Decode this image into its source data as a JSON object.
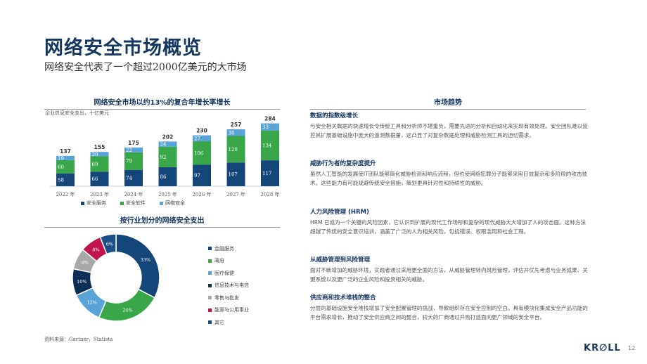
{
  "title": "网络安全市场概览",
  "subtitle": "网络安全代表了一个超过2000亿美元的大市场",
  "bar_section_title": "网络安全市场以约13%的复合年增长率增长",
  "bar_unit": "企业信息安全支出，十亿美元",
  "pie_section_title": "按行业划分的网络安全支出",
  "trend_section_title": "市场趋势",
  "source": "资料来源：Gartner，Statista",
  "logo": "KR∅LL",
  "page_number": "12",
  "colors": {
    "navy": "#14467a",
    "green": "#3aa64a",
    "lightblue": "#5aa3d6",
    "title": "#14365f"
  },
  "chart_data": [
    {
      "type": "bar",
      "stacked": true,
      "categories": [
        "2022 年",
        "2023 年",
        "2024 年",
        "2025 年",
        "2026 年",
        "2027 年",
        "2028 年"
      ],
      "series": [
        {
          "name": "安全服务",
          "color": "#14467a",
          "values": [
            58,
            66,
            74,
            86,
            97,
            107,
            117
          ]
        },
        {
          "name": "安全软件",
          "color": "#3aa64a",
          "values": [
            60,
            69,
            79,
            92,
            106,
            120,
            134
          ]
        },
        {
          "name": "网络安全",
          "color": "#5aa3d6",
          "values": [
            19,
            20,
            22,
            24,
            27,
            30,
            33
          ]
        }
      ],
      "totals": [
        137,
        155,
        175,
        202,
        230,
        257,
        284
      ],
      "ylim": [
        0,
        300
      ],
      "legend": "bottom"
    },
    {
      "type": "pie",
      "donut": true,
      "slices": [
        {
          "name": "金融服务",
          "value": 33,
          "label": "33%",
          "color": "#14467a"
        },
        {
          "name": "政府",
          "value": 24,
          "label": "24%",
          "color": "#3aa64a"
        },
        {
          "name": "医疗保健",
          "value": 12,
          "label": "12%",
          "color": "#5aa3d6"
        },
        {
          "name": "信息技术与电信",
          "value": 10,
          "label": "10%",
          "color": "#0e2f55"
        },
        {
          "name": "零售与批发",
          "value": 8,
          "label": "8%",
          "color": "#a8a8a8"
        },
        {
          "name": "能源与公用事业",
          "value": 8,
          "label": "8%",
          "color": "#c0144c"
        },
        {
          "name": "其它",
          "value": 6,
          "label": "6%",
          "color": "#1c4f86"
        }
      ],
      "legend": "right"
    }
  ],
  "trends": [
    {
      "title": "数据的指数级增长",
      "body": "与安全相关数据的快速增长令传统工具和分析师不堪重负，需要先进的分析和自动化来实现有效处理。安全团队难以监控其扩展基础设施中庞大的遥测数据量，这凸显了对复杂数据处理和威胁检测工具的迫切需求。"
    },
    {
      "title": "威胁行为者的复杂度提升",
      "body": "虽然人工智能的发展使IT团队能够简化威胁检测和响应流程，但也使网络犯罪分子能够采用日益复杂和多阶段的攻击技术。这些能力有可能规避传统安全措施，策划更具针对性和持续性的威胁。"
    },
    {
      "title": "人力风险管理 (HRM)",
      "body": "HRM 已成为一个关键的风险因素，它认识到扩展的现代工作场所和复杂的现代威胁大大增加了人的攻击面。这种方法超越了传统的安全意识培训，涵盖了广泛的人为相关风险，包括错误、权限滥用和社会工程。"
    },
    {
      "title": "从威胁管理到风险管理",
      "body": "面对不断增加的威胁环境，实践者通过采用更全面的方法，从威胁管理转向风险管理，评估并优先考虑与业务成果、关键系统以及更广泛的企业风险和投资相关的威胁。"
    },
    {
      "title": "供应商和技术堆栈的整合",
      "body": "分层的基础设施安全堆栈增加了安全配置管理的挑战，导致组织存在安全控制的空白。具有模块化集成安全产品功能的平台需求增长，推动了安全供应商之间的整合，较大的厂商通过并购打造面向更广领域的安全平台。"
    }
  ]
}
